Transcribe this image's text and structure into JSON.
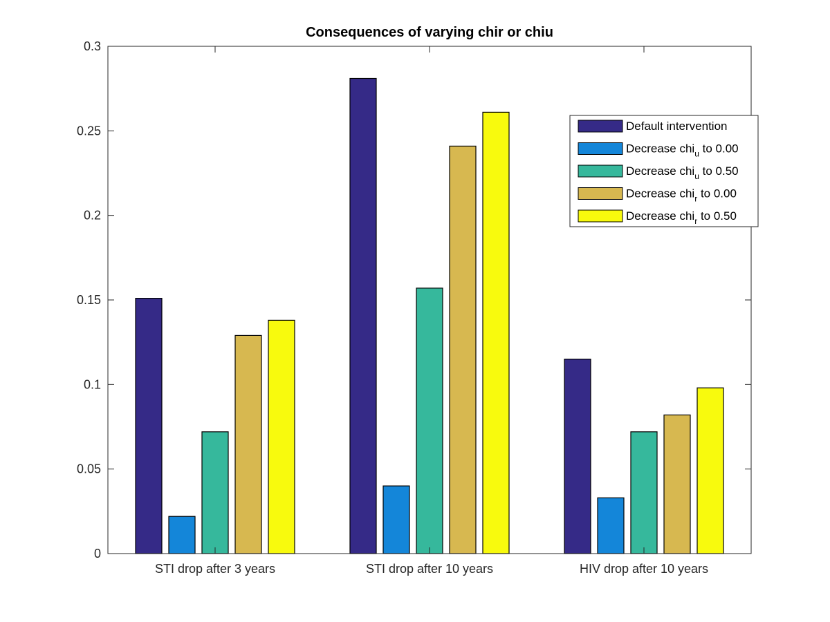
{
  "chart_data": {
    "type": "bar",
    "title": "Consequences of varying chir or chiu",
    "xlabel": "",
    "ylabel": "",
    "categories": [
      "STI drop after 3 years",
      "STI drop after 10 years",
      "HIV drop after 10 years"
    ],
    "ylim": [
      0,
      0.3
    ],
    "yticks": [
      "0",
      "0.05",
      "0.1",
      "0.15",
      "0.2",
      "0.25",
      "0.3"
    ],
    "series": [
      {
        "name": "Default intervention",
        "label_parts": [
          "Default intervention",
          "",
          ""
        ],
        "color": "#352a87",
        "values": [
          0.151,
          0.281,
          0.115
        ]
      },
      {
        "name": "Decrease chi_u to 0.00",
        "label_parts": [
          "Decrease chi",
          "u",
          " to 0.00"
        ],
        "color": "#1486d9",
        "values": [
          0.022,
          0.04,
          0.033
        ]
      },
      {
        "name": "Decrease chi_u to 0.50",
        "label_parts": [
          "Decrease chi",
          "u",
          " to 0.50"
        ],
        "color": "#36b89c",
        "values": [
          0.072,
          0.157,
          0.072
        ]
      },
      {
        "name": "Decrease chi_r to 0.00",
        "label_parts": [
          "Decrease chi",
          "r",
          " to 0.00"
        ],
        "color": "#d7b850",
        "values": [
          0.129,
          0.241,
          0.082
        ]
      },
      {
        "name": "Decrease chi_r to 0.50",
        "label_parts": [
          "Decrease chi",
          "r",
          " to 0.50"
        ],
        "color": "#f8fa0d",
        "values": [
          0.138,
          0.261,
          0.098
        ]
      }
    ],
    "grid": false,
    "legend_position": "top-right"
  }
}
